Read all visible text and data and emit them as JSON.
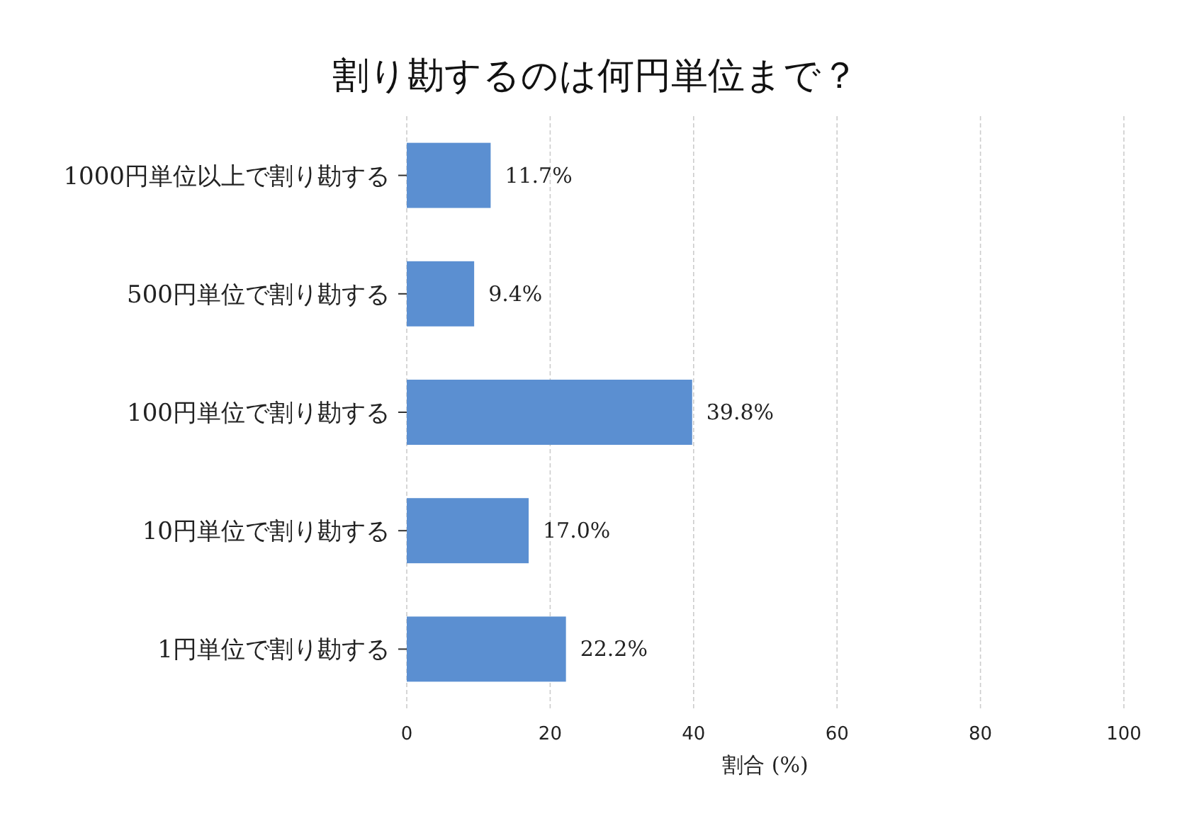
{
  "chart_data": {
    "type": "bar",
    "orientation": "horizontal",
    "title": "割り勘するのは何円単位まで？",
    "xlabel": "割合 (%)",
    "categories": [
      "1000円単位以上で割り勘する",
      "500円単位で割り勘する",
      "100円単位で割り勘する",
      "10円単位で割り勘する",
      "1円単位で割り勘する"
    ],
    "values": [
      11.7,
      9.4,
      39.8,
      17.0,
      22.2
    ],
    "value_labels": [
      "11.7%",
      "9.4%",
      "39.8%",
      "17.0%",
      "22.2%"
    ],
    "color": "#5b8fd1",
    "xlim": [
      0,
      100
    ],
    "xticks": [
      0,
      20,
      40,
      60,
      80,
      100
    ],
    "grid": "x"
  }
}
